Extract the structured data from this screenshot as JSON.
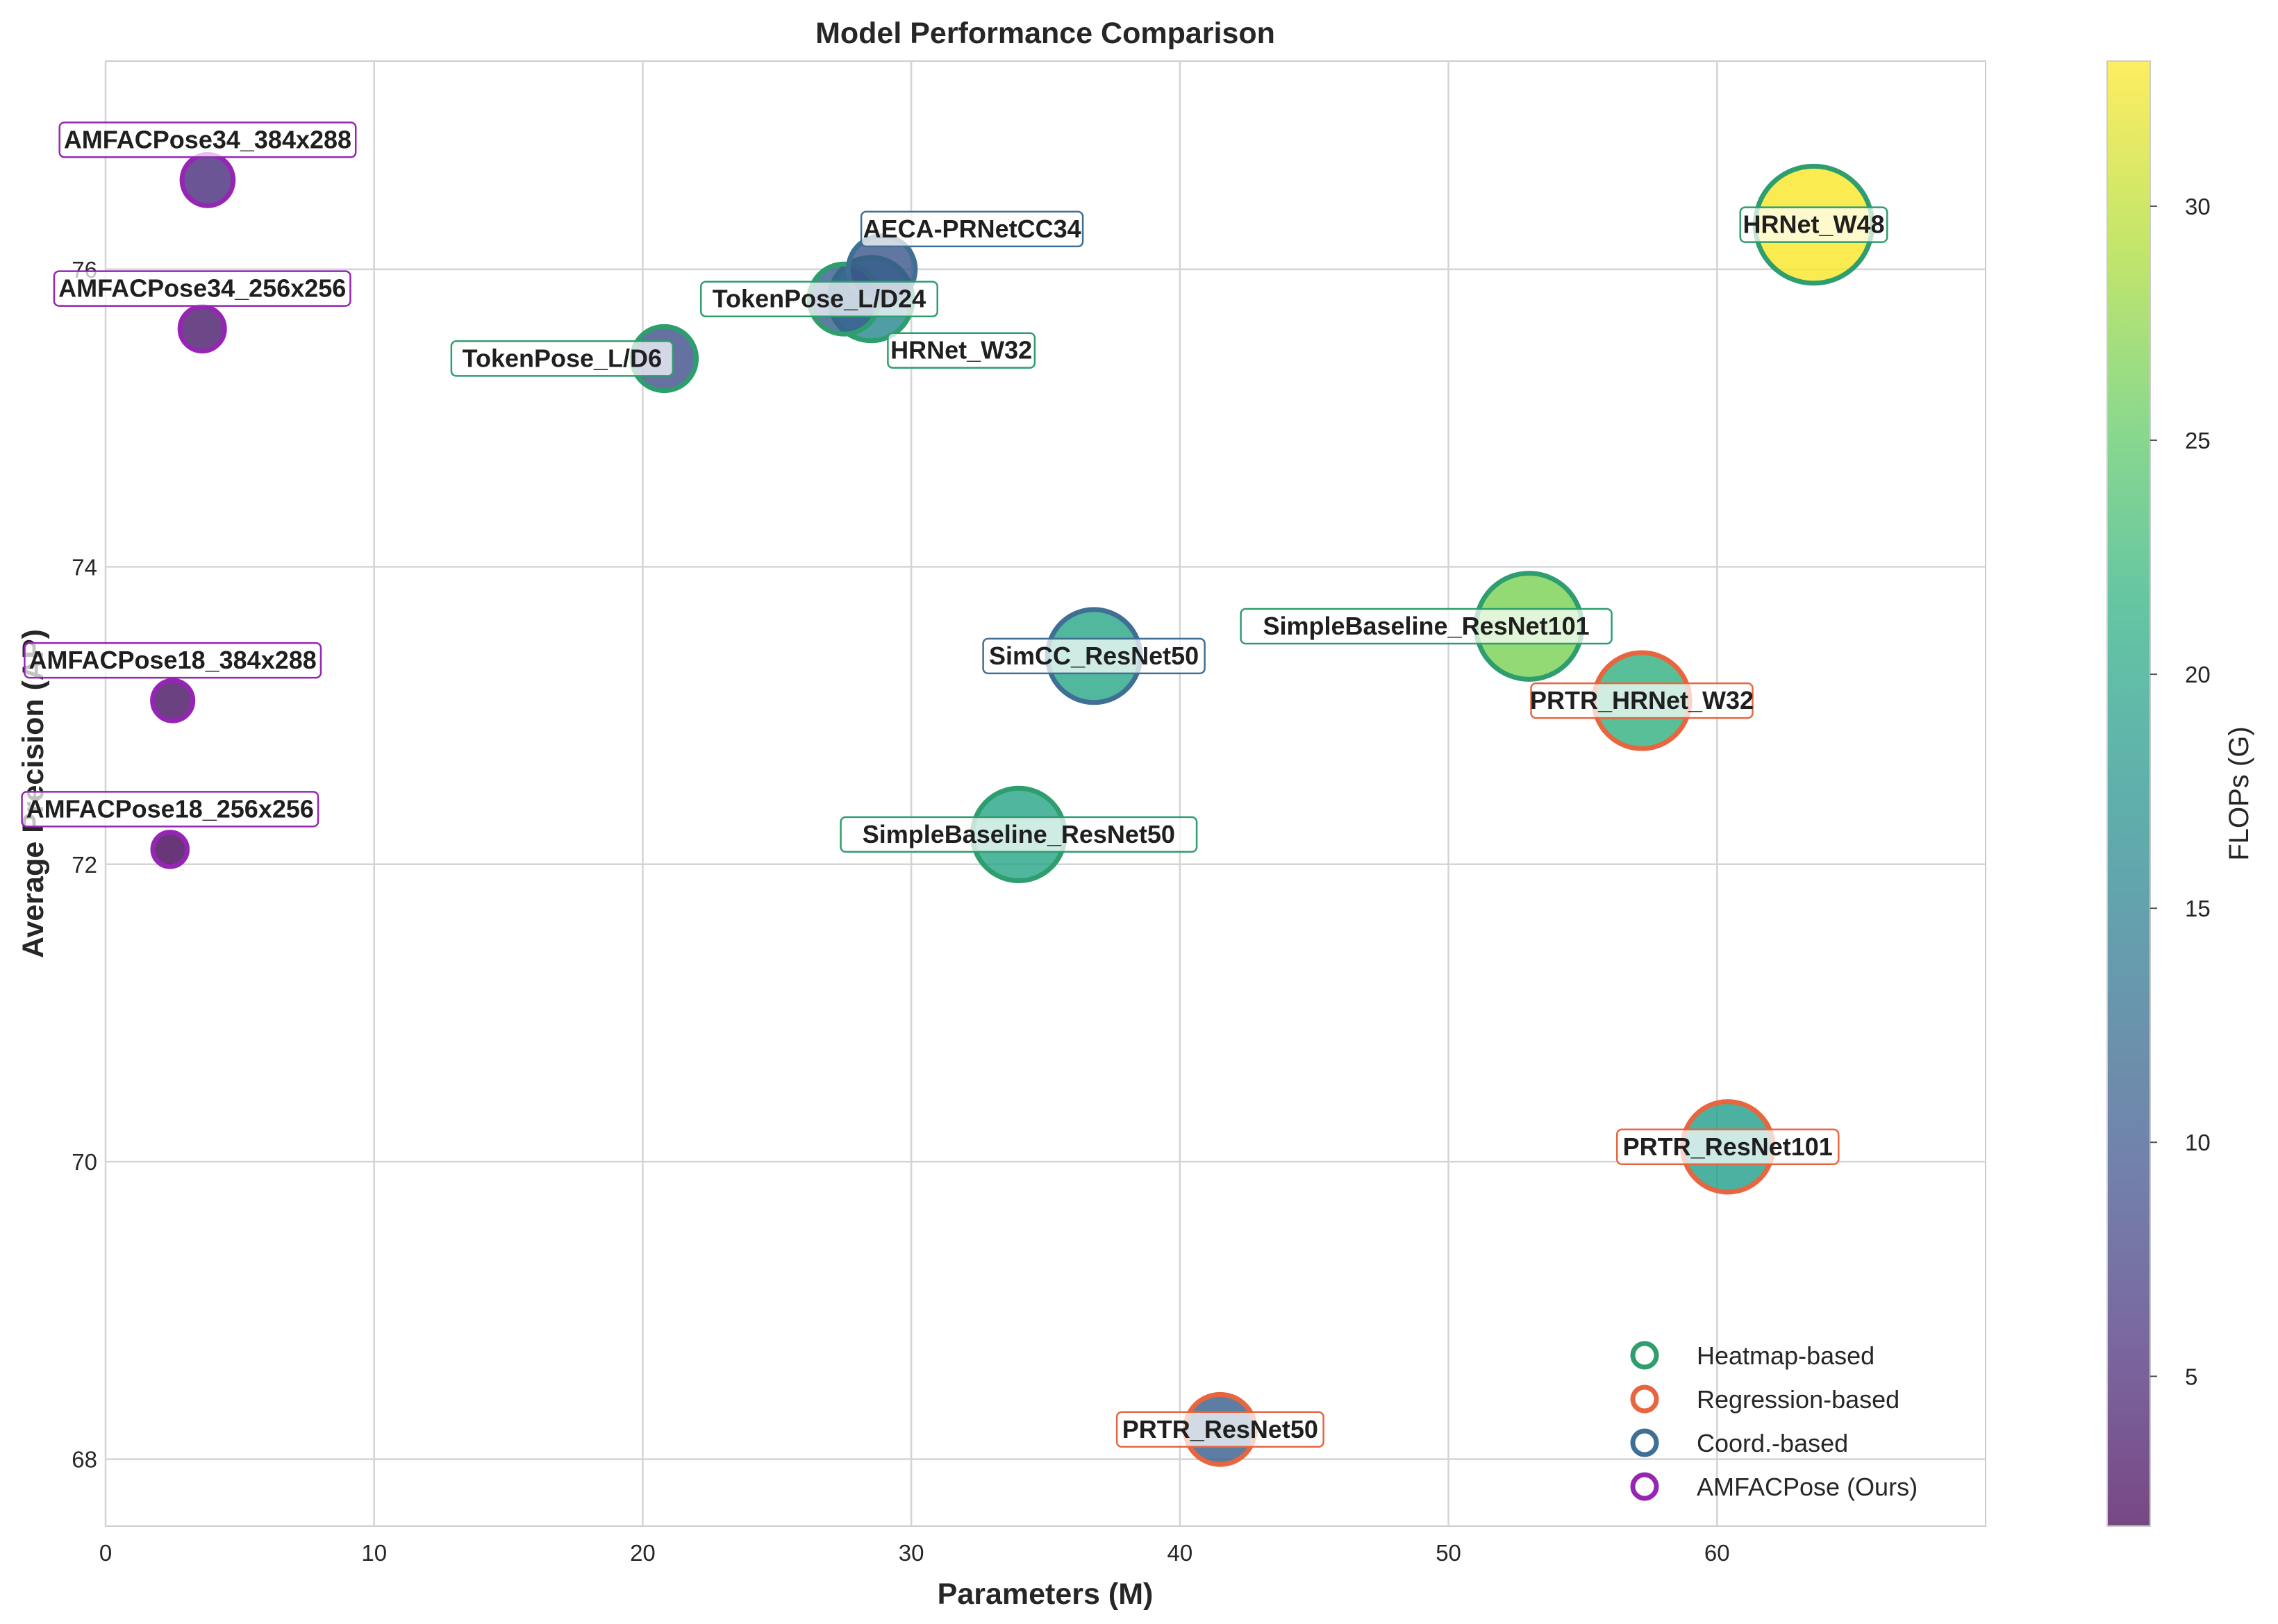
{
  "chart_data": {
    "type": "scatter",
    "title": "Model Performance Comparison",
    "xlabel": "Parameters (M)",
    "ylabel": "Average Precision (AP)",
    "xlim": [
      0,
      70
    ],
    "ylim": [
      67.55,
      77.4
    ],
    "xticks": [
      0,
      10,
      20,
      30,
      40,
      50,
      60
    ],
    "yticks": [
      68,
      70,
      72,
      74,
      76
    ],
    "grid": true,
    "colorbar": {
      "label": "FLOPs (G)",
      "range": [
        1.8,
        33.1
      ],
      "ticks": [
        5,
        10,
        15,
        20,
        25,
        30
      ],
      "colormap": "viridis"
    },
    "categories": [
      {
        "name": "Heatmap-based",
        "color": "#2e9e6e"
      },
      {
        "name": "Regression-based",
        "color": "#e8663f"
      },
      {
        "name": "Coord.-based",
        "color": "#3f6f94"
      },
      {
        "name": "AMFACPose (Ours)",
        "color": "#9526b3"
      }
    ],
    "legend_position": "lower-right",
    "points": [
      {
        "name": "AMFACPose34_384x288",
        "params": 3.8,
        "ap": 76.6,
        "flops": 5.5,
        "category": "AMFACPose (Ours)"
      },
      {
        "name": "AMFACPose34_256x256",
        "params": 3.6,
        "ap": 75.6,
        "flops": 4.0,
        "category": "AMFACPose (Ours)"
      },
      {
        "name": "AMFACPose18_384x288",
        "params": 2.5,
        "ap": 73.1,
        "flops": 3.2,
        "category": "AMFACPose (Ours)"
      },
      {
        "name": "AMFACPose18_256x256",
        "params": 2.4,
        "ap": 72.1,
        "flops": 2.2,
        "category": "AMFACPose (Ours)"
      },
      {
        "name": "AECA-PRNetCC34",
        "params": 28.9,
        "ap": 76.0,
        "flops": 10.0,
        "category": "Coord.-based"
      },
      {
        "name": "TokenPose_L/D24",
        "params": 27.5,
        "ap": 75.8,
        "flops": 11.0,
        "category": "Heatmap-based"
      },
      {
        "name": "HRNet_W32",
        "params": 28.5,
        "ap": 75.8,
        "flops": 16.0,
        "category": "Heatmap-based"
      },
      {
        "name": "TokenPose_L/D6",
        "params": 20.8,
        "ap": 75.4,
        "flops": 9.1,
        "category": "Heatmap-based"
      },
      {
        "name": "HRNet_W48",
        "params": 63.6,
        "ap": 76.3,
        "flops": 32.9,
        "category": "Heatmap-based"
      },
      {
        "name": "SimpleBaseline_ResNet101",
        "params": 53.0,
        "ap": 73.6,
        "flops": 26.7,
        "category": "Heatmap-based"
      },
      {
        "name": "SimCC_ResNet50",
        "params": 36.8,
        "ap": 73.4,
        "flops": 20.2,
        "category": "Coord.-based"
      },
      {
        "name": "PRTR_HRNet_W32",
        "params": 57.2,
        "ap": 73.1,
        "flops": 21.6,
        "category": "Regression-based"
      },
      {
        "name": "SimpleBaseline_ResNet50",
        "params": 34.0,
        "ap": 72.2,
        "flops": 20.0,
        "category": "Heatmap-based"
      },
      {
        "name": "PRTR_ResNet101",
        "params": 60.4,
        "ap": 70.1,
        "flops": 19.1,
        "category": "Regression-based"
      },
      {
        "name": "PRTR_ResNet50",
        "params": 41.5,
        "ap": 68.2,
        "flops": 11.0,
        "category": "Regression-based"
      }
    ]
  }
}
